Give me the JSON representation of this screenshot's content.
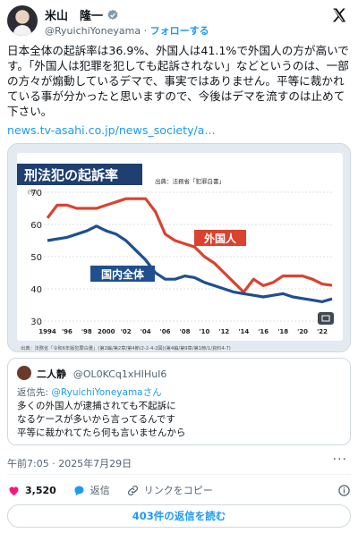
{
  "author": {
    "name": "米山　隆一",
    "handle": "@RyuichiYoneyama",
    "separator": "·",
    "follow_label": "フォローする"
  },
  "tweet": {
    "text": "日本全体の起訴率は36.9%、外国人は41.1%で外国人の方が高いです。「外国人は犯罪を犯しても起訴されない」などというのは、一部の方々が煽動しているデマで、事実ではありません。平等に裁かれている事が分かったと思いますので、今後はデマを流すのは止めて下さい。",
    "link": "news.tv-asahi.co.jp/news_society/a..."
  },
  "media": {
    "chart_title": "刑法犯の起訴率",
    "source_top": "出典：法務省「犯罪白書」",
    "source_bottom": "出典：法務省「令和6年版犯罪白書」(第2編/第2章/第4節/2-2-4-2図)(第4編/第9章/第1節/1/資料4-7)",
    "fullscreen_icon": "image-icon"
  },
  "chart_data": {
    "type": "line",
    "x": [
      1994,
      1995,
      1996,
      1997,
      1998,
      1999,
      2000,
      2001,
      2002,
      2003,
      2004,
      2005,
      2006,
      2007,
      2008,
      2009,
      2010,
      2011,
      2012,
      2013,
      2014,
      2015,
      2016,
      2017,
      2018,
      2019,
      2020,
      2021,
      2022,
      2023
    ],
    "x_tick_labels": [
      "1994",
      "'96",
      "'98",
      "2000",
      "'02",
      "'04",
      "'06",
      "'08",
      "'10",
      "'12",
      "'14",
      "'16",
      "'18",
      "'20",
      "'22"
    ],
    "ylabel": "(%)",
    "ylim": [
      30,
      70
    ],
    "y_ticks": [
      30,
      40,
      50,
      60,
      70
    ],
    "series": [
      {
        "name": "外国人",
        "color": "#d9432f",
        "values": [
          62,
          66,
          66,
          65,
          65,
          65,
          66,
          67,
          68,
          68,
          68,
          64,
          57,
          55,
          54,
          53,
          50,
          48,
          45,
          42,
          39,
          43,
          41,
          42,
          44,
          44,
          44,
          43,
          41.5,
          41.1
        ]
      },
      {
        "name": "国内全体",
        "color": "#1f4f8f",
        "values": [
          55,
          55.5,
          56,
          57,
          58,
          59.5,
          58,
          57,
          55,
          52,
          49,
          45,
          43,
          43,
          44,
          43.5,
          42,
          41,
          40,
          39,
          38.5,
          38,
          37.5,
          38,
          38.5,
          37.5,
          37,
          36.5,
          36,
          36.9
        ]
      }
    ]
  },
  "quote": {
    "name": "二人静",
    "handle": "@OL0KCq1xHIHuI6",
    "reply_prefix": "返信先: ",
    "reply_mention": "@RyuichiYoneyamaさん",
    "text": "多くの外国人が逮捕されても不起訴に\nなるケースが多いから言ってるんです\n平等に裁かれてたら何も言いませんから"
  },
  "meta": {
    "timestamp": "午前7:05 · 2025年7月29日",
    "more": "···"
  },
  "actions": {
    "likes": "3,520",
    "reply_label": "返信",
    "copy_link_label": "リンクをコピー"
  },
  "replies_button": "403件の返信を読む"
}
